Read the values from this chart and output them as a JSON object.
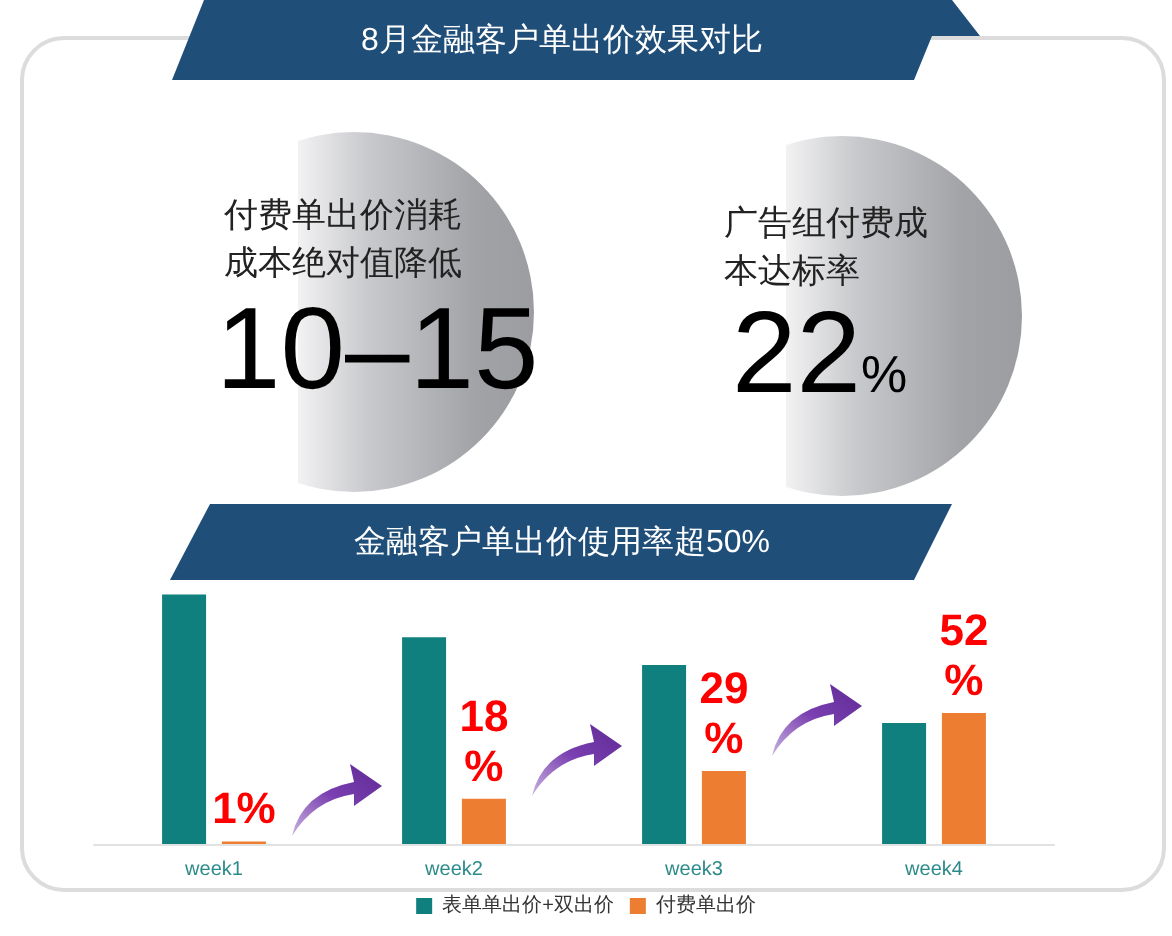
{
  "chart_data": [
    {
      "type": "other",
      "title": "8月金融客户单出价效果对比",
      "annotations": [
        "付费单出价消耗成本绝对值降低",
        "10–15",
        "广告组付费成本达标率",
        "22%"
      ]
    },
    {
      "type": "bar",
      "title": "金融客户单出价使用率超50%",
      "categories": [
        "week1",
        "week2",
        "week3",
        "week4"
      ],
      "series": [
        {
          "name": "表单单出价+双出价",
          "color": "#10807f",
          "values": [
            99,
            82,
            71,
            48
          ]
        },
        {
          "name": "付费单出价",
          "color": "#ed7d31",
          "values": [
            1,
            18,
            29,
            52
          ],
          "value_labels": [
            "1%",
            "18%",
            "29%",
            "52%"
          ]
        }
      ],
      "legend": "bottom"
    }
  ]
}
